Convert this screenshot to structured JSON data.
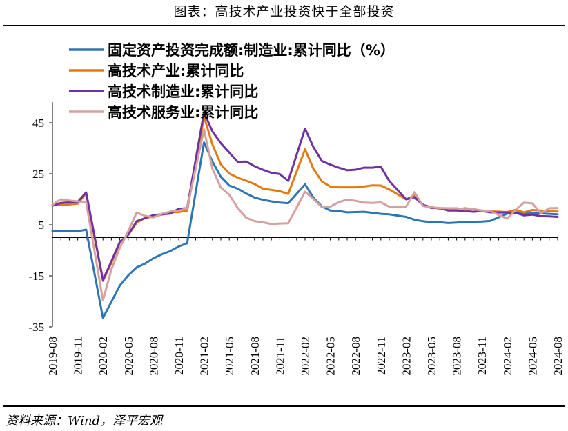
{
  "header": {
    "title": "图表：高技术产业投资快于全部投资"
  },
  "footer": {
    "source": "资料来源：Wind，泽平宏观"
  },
  "chart_data": {
    "type": "line",
    "title": "图表：高技术产业投资快于全部投资",
    "xlabel": "",
    "ylabel": "",
    "ylim": [
      -35,
      52
    ],
    "yticks": [
      45,
      25,
      5,
      -15,
      -35
    ],
    "grid": false,
    "legend_position": "top-left",
    "x": [
      "2019-08",
      "2019-09",
      "2019-10",
      "2019-11",
      "2019-12",
      "2020-01",
      "2020-02",
      "2020-03",
      "2020-04",
      "2020-05",
      "2020-06",
      "2020-07",
      "2020-08",
      "2020-09",
      "2020-10",
      "2020-11",
      "2020-12",
      "2021-01",
      "2021-02",
      "2021-03",
      "2021-04",
      "2021-05",
      "2021-06",
      "2021-07",
      "2021-08",
      "2021-09",
      "2021-10",
      "2021-11",
      "2021-12",
      "2022-01",
      "2022-02",
      "2022-03",
      "2022-04",
      "2022-05",
      "2022-06",
      "2022-07",
      "2022-08",
      "2022-09",
      "2022-10",
      "2022-11",
      "2022-12",
      "2023-01",
      "2023-02",
      "2023-03",
      "2023-04",
      "2023-05",
      "2023-06",
      "2023-07",
      "2023-08",
      "2023-09",
      "2023-10",
      "2023-11",
      "2023-12",
      "2024-01",
      "2024-02",
      "2024-03",
      "2024-04",
      "2024-05",
      "2024-06",
      "2024-07",
      "2024-08"
    ],
    "xtick_labels": [
      "2019-08",
      "2019-11",
      "2020-02",
      "2020-05",
      "2020-08",
      "2020-11",
      "2021-02",
      "2021-05",
      "2021-08",
      "2021-11",
      "2022-02",
      "2022-05",
      "2022-08",
      "2022-11",
      "2023-02",
      "2023-05",
      "2023-08",
      "2023-11",
      "2024-02",
      "2024-05",
      "2024-08"
    ],
    "series": [
      {
        "name": "固定资产投资完成额:制造业:累计同比（%）",
        "color": "#2E75B6",
        "values": [
          2.6,
          2.5,
          2.6,
          2.5,
          3.1,
          null,
          -31.5,
          -25.2,
          -18.8,
          -14.8,
          -11.7,
          -10.2,
          -8.1,
          -6.5,
          -5.3,
          -3.5,
          -2.2,
          null,
          37.3,
          29.8,
          23.8,
          20.4,
          19.2,
          17.3,
          15.7,
          14.8,
          14.2,
          13.7,
          13.5,
          null,
          20.9,
          15.6,
          12.2,
          10.6,
          10.4,
          9.9,
          10.0,
          10.1,
          9.7,
          9.3,
          9.1,
          null,
          8.1,
          7.0,
          6.4,
          6.0,
          6.0,
          5.7,
          5.9,
          6.2,
          6.2,
          6.3,
          6.5,
          null,
          9.4,
          9.9,
          9.7,
          9.6,
          9.5,
          9.3,
          9.1
        ]
      },
      {
        "name": "高技术产业:累计同比",
        "color": "#E07B10",
        "values": [
          12.7,
          12.8,
          13.0,
          13.3,
          17.3,
          null,
          -17.0,
          -9.9,
          -1.9,
          1.0,
          5.8,
          7.7,
          8.2,
          9.0,
          9.9,
          10.0,
          10.6,
          null,
          47.4,
          36.5,
          28.7,
          25.1,
          23.5,
          22.3,
          21.0,
          19.2,
          18.7,
          18.2,
          17.1,
          null,
          34.6,
          26.9,
          22.0,
          20.0,
          19.7,
          19.7,
          19.7,
          20.0,
          20.5,
          20.4,
          18.9,
          null,
          15.0,
          16.4,
          12.7,
          12.0,
          11.3,
          11.1,
          11.0,
          11.5,
          11.1,
          10.6,
          10.3,
          null,
          10.0,
          10.9,
          9.9,
          10.8,
          10.6,
          10.4,
          10.2
        ]
      },
      {
        "name": "高技术制造业:累计同比",
        "color": "#7030A0",
        "values": [
          12.5,
          13.6,
          13.8,
          14.0,
          17.7,
          null,
          -16.6,
          -9.3,
          -1.7,
          1.1,
          6.4,
          7.6,
          8.8,
          9.1,
          9.4,
          11.3,
          11.5,
          null,
          49.1,
          41.6,
          37.0,
          33.3,
          29.7,
          29.8,
          28.0,
          26.6,
          25.4,
          24.9,
          22.2,
          null,
          42.7,
          35.4,
          30.0,
          28.6,
          27.4,
          26.4,
          26.6,
          27.4,
          27.4,
          27.8,
          22.2,
          null,
          15.0,
          15.8,
          12.9,
          11.6,
          11.6,
          10.6,
          10.6,
          10.4,
          10.1,
          10.4,
          9.9,
          null,
          9.8,
          9.7,
          8.7,
          9.0,
          8.4,
          8.3,
          8.1
        ]
      },
      {
        "name": "高技术服务业:累计同比",
        "color": "#D4A0A0",
        "values": [
          12.9,
          15.0,
          14.5,
          14.2,
          13.9,
          null,
          -24.6,
          -12.5,
          -4.0,
          2.5,
          9.8,
          8.5,
          7.9,
          9.3,
          10.2,
          10.5,
          11.5,
          null,
          42.4,
          27.0,
          19.6,
          16.8,
          11.6,
          7.8,
          6.4,
          6.0,
          5.3,
          5.5,
          5.6,
          null,
          18.0,
          15.1,
          11.9,
          12.1,
          13.9,
          14.9,
          14.4,
          13.7,
          13.6,
          13.8,
          12.1,
          null,
          12.1,
          17.8,
          12.4,
          11.8,
          11.6,
          11.5,
          11.5,
          11.0,
          11.1,
          10.6,
          10.4,
          null,
          7.4,
          10.8,
          13.7,
          13.4,
          9.5,
          11.5,
          11.6
        ]
      }
    ]
  }
}
